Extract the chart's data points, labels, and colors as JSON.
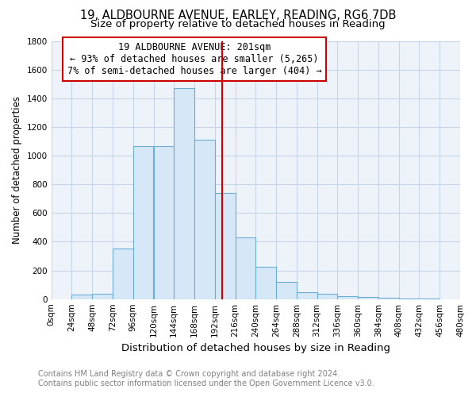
{
  "title_line1": "19, ALDBOURNE AVENUE, EARLEY, READING, RG6 7DB",
  "title_line2": "Size of property relative to detached houses in Reading",
  "xlabel": "Distribution of detached houses by size in Reading",
  "ylabel": "Number of detached properties",
  "bin_edges": [
    0,
    24,
    48,
    72,
    96,
    120,
    144,
    168,
    192,
    216,
    240,
    264,
    288,
    312,
    336,
    360,
    384,
    408,
    432,
    456,
    480
  ],
  "bar_heights": [
    0,
    30,
    35,
    355,
    1065,
    1065,
    1470,
    1110,
    740,
    430,
    225,
    120,
    50,
    35,
    20,
    15,
    10,
    5,
    3,
    0
  ],
  "bar_facecolor": "#d6e8f7",
  "bar_edgecolor": "#6aaed6",
  "vline_x": 201,
  "vline_color": "#cc0000",
  "ylim": [
    0,
    1800
  ],
  "yticks": [
    0,
    200,
    400,
    600,
    800,
    1000,
    1200,
    1400,
    1600,
    1800
  ],
  "grid_color": "#c8d4e8",
  "grid_alpha": 0.9,
  "annotation_text": "19 ALDBOURNE AVENUE: 201sqm\n← 93% of detached houses are smaller (5,265)\n7% of semi-detached houses are larger (404) →",
  "annotation_box_edgecolor": "#cc0000",
  "annotation_box_facecolor": "#ffffff",
  "footer_line1": "Contains HM Land Registry data © Crown copyright and database right 2024.",
  "footer_line2": "Contains public sector information licensed under the Open Government Licence v3.0.",
  "title_fontsize": 10.5,
  "subtitle_fontsize": 9.5,
  "ylabel_fontsize": 8.5,
  "xlabel_fontsize": 9.5,
  "tick_fontsize": 7.5,
  "annotation_fontsize": 8.5,
  "footer_fontsize": 7,
  "background_color": "#eef3fa"
}
